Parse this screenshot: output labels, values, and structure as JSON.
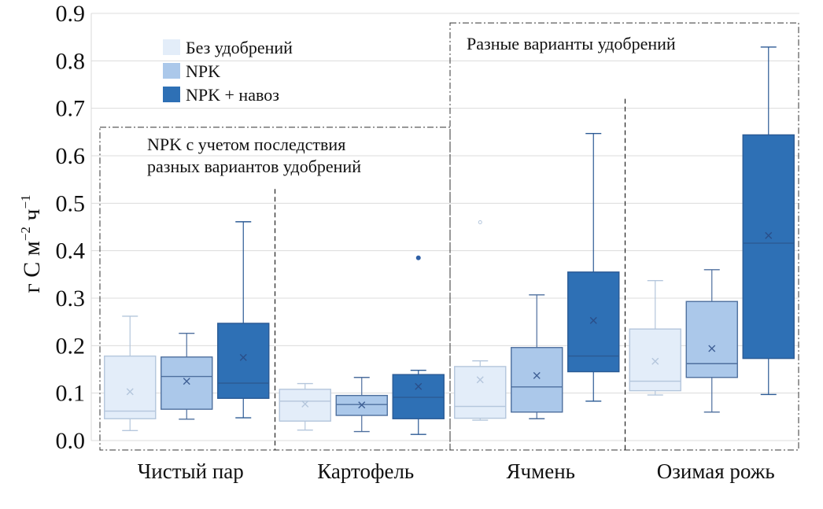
{
  "chart_data": {
    "type": "box",
    "title": "",
    "xlabel": "",
    "ylabel": "г С м⁻² ч⁻¹",
    "ylabel_parts": {
      "base1": "г С м",
      "sup1": "−2",
      "base2": " ч",
      "sup2": "−1"
    },
    "ylim": [
      0.0,
      0.9
    ],
    "yticks": [
      0.0,
      0.1,
      0.2,
      0.3,
      0.4,
      0.5,
      0.6,
      0.7,
      0.8,
      0.9
    ],
    "ytick_labels": [
      "0.0",
      "0.1",
      "0.2",
      "0.3",
      "0.4",
      "0.5",
      "0.6",
      "0.7",
      "0.8",
      "0.9"
    ],
    "grid": true,
    "legend_position": "top-left",
    "categories": [
      "Чистый пар",
      "Картофель",
      "Ячмень",
      "Озимая рожь"
    ],
    "series": [
      {
        "name": "Без удобрений",
        "color": "#e3edf9",
        "stroke": "#b4c6dc",
        "mean_color": "#b4c6dc",
        "boxes": [
          {
            "min": 0.021,
            "q1": 0.046,
            "median": 0.062,
            "q3": 0.178,
            "max": 0.262,
            "mean": 0.103,
            "outliers": []
          },
          {
            "min": 0.022,
            "q1": 0.041,
            "median": 0.083,
            "q3": 0.108,
            "max": 0.12,
            "mean": 0.077,
            "outliers": []
          },
          {
            "min": 0.043,
            "q1": 0.047,
            "median": 0.072,
            "q3": 0.156,
            "max": 0.168,
            "mean": 0.128,
            "outliers": [
              0.46
            ]
          },
          {
            "min": 0.096,
            "q1": 0.105,
            "median": 0.125,
            "q3": 0.235,
            "max": 0.337,
            "mean": 0.167,
            "outliers": []
          }
        ]
      },
      {
        "name": "NPK",
        "color": "#abc8ea",
        "stroke": "#4e6f9e",
        "mean_color": "#3e5f95",
        "boxes": [
          {
            "min": 0.045,
            "q1": 0.066,
            "median": 0.135,
            "q3": 0.176,
            "max": 0.226,
            "mean": 0.125,
            "outliers": []
          },
          {
            "min": 0.019,
            "q1": 0.053,
            "median": 0.076,
            "q3": 0.095,
            "max": 0.133,
            "mean": 0.075,
            "outliers": []
          },
          {
            "min": 0.046,
            "q1": 0.06,
            "median": 0.113,
            "q3": 0.196,
            "max": 0.307,
            "mean": 0.137,
            "outliers": []
          },
          {
            "min": 0.06,
            "q1": 0.133,
            "median": 0.162,
            "q3": 0.293,
            "max": 0.36,
            "mean": 0.194,
            "outliers": []
          }
        ]
      },
      {
        "name": "NPK + навоз",
        "color": "#2e70b5",
        "stroke": "#2b5a94",
        "mean_color": "#2a4f8a",
        "boxes": [
          {
            "min": 0.048,
            "q1": 0.089,
            "median": 0.121,
            "q3": 0.247,
            "max": 0.461,
            "mean": 0.175,
            "outliers": []
          },
          {
            "min": 0.013,
            "q1": 0.046,
            "median": 0.091,
            "q3": 0.139,
            "max": 0.148,
            "mean": 0.114,
            "outliers": [
              0.385
            ]
          },
          {
            "min": 0.083,
            "q1": 0.145,
            "median": 0.178,
            "q3": 0.355,
            "max": 0.647,
            "mean": 0.253,
            "outliers": []
          },
          {
            "min": 0.097,
            "q1": 0.173,
            "median": 0.416,
            "q3": 0.644,
            "max": 0.829,
            "mean": 0.432,
            "outliers": []
          }
        ]
      }
    ],
    "annotations": [
      {
        "lines": [
          "NPK с учетом последствия",
          "разных вариантов удобрений"
        ],
        "spans_categories": [
          "Чистый пар",
          "Картофель"
        ],
        "box_top_value": 0.66
      },
      {
        "lines": [
          "Разные варианты удобрений"
        ],
        "spans_categories": [
          "Ячмень",
          "Озимая рожь"
        ],
        "box_top_value": 0.88
      }
    ],
    "separators": [
      {
        "between": [
          "Чистый пар",
          "Картофель"
        ],
        "top_value": 0.53
      },
      {
        "between": [
          "Ячмень",
          "Озимая рожь"
        ],
        "top_value": 0.72
      }
    ]
  }
}
